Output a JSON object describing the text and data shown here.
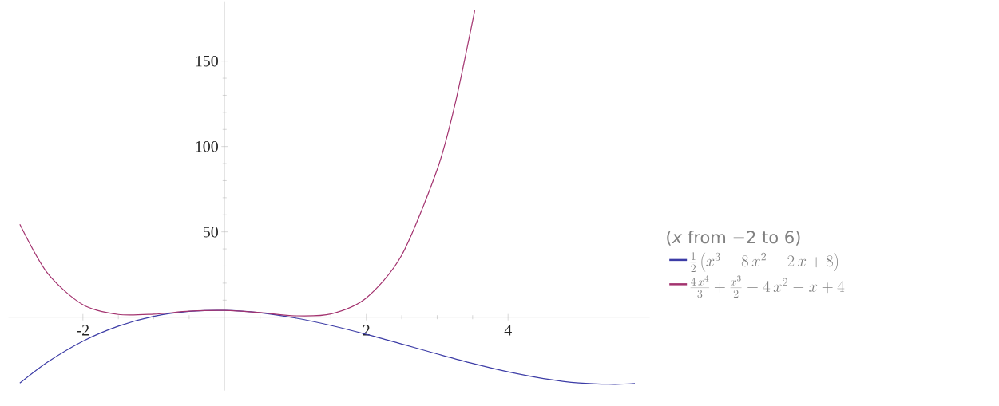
{
  "chart_data": {
    "type": "line",
    "legend_title": "(*x* from −2 to 6)",
    "legend": "right",
    "xlim": [
      -3.05,
      6.0
    ],
    "ylim": [
      -43,
      185
    ],
    "xticks": [
      -2,
      {
        "value": 0,
        "label": null
      },
      2,
      4
    ],
    "yticks": [
      {
        "value": 0,
        "label": null
      },
      50,
      100,
      150
    ],
    "series": [
      {
        "name": "\\frac{1}{2}\\left(x^{3}-8\\,x^{2}-2\\,x+8\\right)",
        "color": "#3c3ca6",
        "x": [
          -2.89,
          -2.5,
          -2,
          -1.5,
          -1,
          -0.5,
          0,
          0.5,
          1,
          1.5,
          2,
          2.5,
          3,
          3.5,
          4,
          4.5,
          5,
          5.5,
          5.79
        ],
        "values": [
          -38.6,
          -26.3,
          -14,
          -5.2,
          0.5,
          3.4,
          4,
          2.6,
          -0.5,
          -4.8,
          -10,
          -15.7,
          -21.5,
          -27.1,
          -32,
          -35.9,
          -38.5,
          -39.3,
          -38.8
        ]
      },
      {
        "name": "\\frac{4\\,x^{4}}{3}+\\frac{x^{3}}{2}-4\\,x^{2}-x+4",
        "color": "#a3336f",
        "x": [
          -2.89,
          -2.5,
          -2,
          -1.5,
          -1,
          -0.5,
          0,
          0.5,
          1,
          1.5,
          2,
          2.5,
          3,
          3.25,
          3.53
        ],
        "values": [
          54.4,
          25.8,
          7.3,
          1.6,
          1.8,
          3.5,
          4,
          2.7,
          0.8,
          1.9,
          11.3,
          36.4,
          86.5,
          124.4,
          179.7
        ]
      }
    ]
  }
}
